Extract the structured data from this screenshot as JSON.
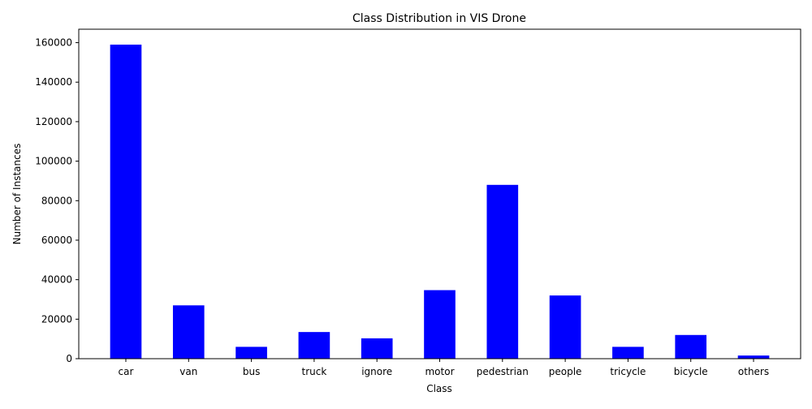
{
  "chart_data": {
    "type": "bar",
    "title": "Class Distribution in VIS Drone",
    "xlabel": "Class",
    "ylabel": "Number of Instances",
    "categories": [
      "car",
      "van",
      "bus",
      "truck",
      "ignore",
      "motor",
      "pedestrian",
      "people",
      "tricycle",
      "bicycle",
      "others"
    ],
    "values": [
      159000,
      27000,
      6000,
      13500,
      10300,
      34700,
      88000,
      32000,
      6000,
      12000,
      1600
    ],
    "ylim": [
      0,
      166800
    ],
    "yticks": [
      0,
      20000,
      40000,
      60000,
      80000,
      100000,
      120000,
      140000,
      160000
    ],
    "ytick_labels": [
      "0",
      "20000",
      "40000",
      "60000",
      "80000",
      "100000",
      "120000",
      "140000",
      "160000"
    ],
    "bar_color": "#0000ff",
    "grid": false,
    "legend": "none"
  }
}
